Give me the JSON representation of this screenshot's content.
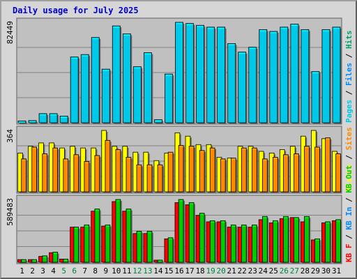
{
  "title": "Daily usage for July 2025",
  "colors": {
    "pages": "#00c8e8",
    "files": "#0088ff",
    "hits": "#00a070",
    "visits": "#ffff00",
    "sites": "#ff8800",
    "kb_f": "#ff0000",
    "kb_in": "#0088ff",
    "kb_out": "#00cc00",
    "weekend_day": "#008040",
    "weekday": "#000000"
  },
  "chart_data": [
    {
      "type": "bar",
      "panel": "top",
      "max_label": "82449",
      "ymax": 82449,
      "legend": [
        {
          "text": "Pages",
          "color": "#00c8e8"
        },
        {
          "text": "Files",
          "color": "#0088ff"
        },
        {
          "text": "Hits",
          "color": "#00a070"
        }
      ],
      "categories": [
        "1",
        "2",
        "3",
        "4",
        "5",
        "6",
        "7",
        "8",
        "9",
        "10",
        "11",
        "12",
        "13",
        "14",
        "15",
        "16",
        "17",
        "18",
        "19",
        "20",
        "21",
        "22",
        "23",
        "24",
        "25",
        "26",
        "27",
        "28",
        "29",
        "30",
        "31"
      ],
      "series": [
        {
          "name": "Pages",
          "values": [
            1500,
            1800,
            7500,
            7500,
            5500,
            54000,
            56000,
            70000,
            44000,
            79500,
            73000,
            46000,
            57500,
            2500,
            40000,
            82449,
            81500,
            80000,
            78500,
            78500,
            65000,
            58000,
            62000,
            76500,
            75000,
            78500,
            81000,
            76500,
            42000,
            76500,
            78500
          ]
        }
      ]
    },
    {
      "type": "bar",
      "panel": "middle",
      "max_label": "364",
      "ymax": 364,
      "legend": [
        {
          "text": "Visits",
          "color": "#ffff00"
        },
        {
          "text": "Sites",
          "color": "#ff8800"
        }
      ],
      "categories": [
        "1",
        "2",
        "3",
        "4",
        "5",
        "6",
        "7",
        "8",
        "9",
        "10",
        "11",
        "12",
        "13",
        "14",
        "15",
        "16",
        "17",
        "18",
        "19",
        "20",
        "21",
        "22",
        "23",
        "24",
        "25",
        "26",
        "27",
        "28",
        "29",
        "30",
        "31"
      ],
      "series": [
        {
          "name": "Visits",
          "values": [
            230,
            270,
            290,
            290,
            260,
            270,
            260,
            260,
            364,
            270,
            270,
            235,
            235,
            185,
            230,
            350,
            330,
            280,
            280,
            205,
            200,
            270,
            270,
            240,
            230,
            250,
            270,
            330,
            364,
            315,
            240
          ]
        },
        {
          "name": "Sites",
          "values": [
            195,
            265,
            225,
            260,
            195,
            220,
            180,
            215,
            305,
            250,
            205,
            160,
            160,
            160,
            235,
            275,
            270,
            245,
            260,
            195,
            200,
            260,
            260,
            195,
            205,
            220,
            225,
            270,
            265,
            320,
            225
          ]
        }
      ]
    },
    {
      "type": "bar",
      "panel": "bottom",
      "max_label": "589483",
      "ymax": 589483,
      "legend": [
        {
          "text": "KB F",
          "color": "#ff0000"
        },
        {
          "text": "KB In",
          "color": "#0088ff"
        },
        {
          "text": "KB Out",
          "color": "#00cc00"
        }
      ],
      "categories": [
        "1",
        "2",
        "3",
        "4",
        "5",
        "6",
        "7",
        "8",
        "9",
        "10",
        "11",
        "12",
        "13",
        "14",
        "15",
        "16",
        "17",
        "18",
        "19",
        "20",
        "21",
        "22",
        "23",
        "24",
        "25",
        "26",
        "27",
        "28",
        "29",
        "30",
        "31"
      ],
      "series": [
        {
          "name": "KB F",
          "values": [
            25000,
            25000,
            55000,
            90000,
            30000,
            330000,
            330000,
            480000,
            340000,
            570000,
            480000,
            270000,
            270000,
            20000,
            220000,
            560000,
            540000,
            440000,
            380000,
            380000,
            330000,
            330000,
            330000,
            400000,
            370000,
            410000,
            420000,
            380000,
            210000,
            370000,
            390000
          ]
        },
        {
          "name": "KB Out",
          "values": [
            25000,
            25000,
            60000,
            95000,
            30000,
            330000,
            350000,
            500000,
            350000,
            589483,
            500000,
            290000,
            290000,
            20000,
            230000,
            589483,
            560000,
            460000,
            390000,
            390000,
            350000,
            350000,
            350000,
            430000,
            390000,
            430000,
            420000,
            430000,
            220000,
            380000,
            400000
          ]
        }
      ]
    }
  ]
}
